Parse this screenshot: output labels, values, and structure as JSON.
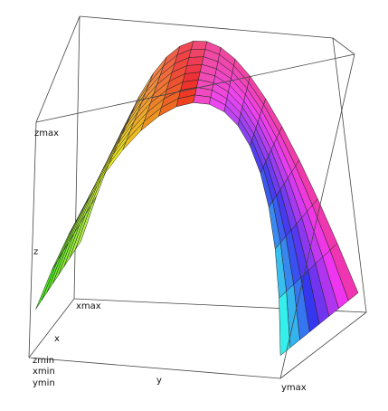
{
  "plot": {
    "axis_labels": {
      "zmax": "zmax",
      "z": "z",
      "xmax": "xmax",
      "x": "x",
      "zmin": "zmin",
      "xmin": "xmin",
      "ymin": "ymin",
      "y": "y",
      "ymax": "ymax"
    }
  }
}
